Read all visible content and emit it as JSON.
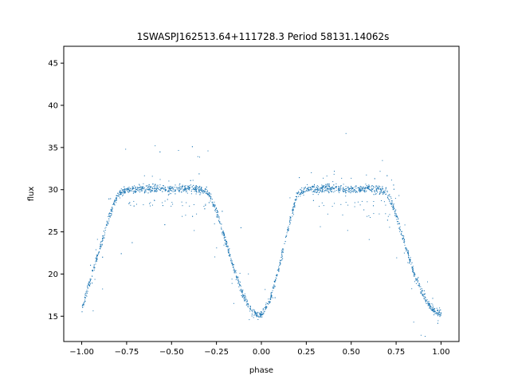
{
  "chart_data": {
    "type": "scatter",
    "title": "1SWASPJ162513.64+111728.3 Period 58131.14062s",
    "xlabel": "phase",
    "ylabel": "flux",
    "xlim": [
      -1.1,
      1.1
    ],
    "ylim": [
      12.0,
      47.0
    ],
    "xticks": [
      -1.0,
      -0.75,
      -0.5,
      -0.25,
      0.0,
      0.25,
      0.5,
      0.75,
      1.0
    ],
    "xtick_labels": [
      "−1.00",
      "−0.75",
      "−0.50",
      "−0.25",
      "0.00",
      "0.25",
      "0.50",
      "0.75",
      "1.00"
    ],
    "yticks": [
      15,
      20,
      25,
      30,
      35,
      40,
      45
    ],
    "ytick_labels": [
      "15",
      "20",
      "25",
      "30",
      "35",
      "40",
      "45"
    ],
    "grid": false,
    "marker_color": "#1f77b4",
    "series": [
      {
        "description_of_trend": "phase-folded light curve, repeated over two cycles",
        "x": [
          -1.0,
          -0.95,
          -0.9,
          -0.85,
          -0.8,
          -0.75,
          -0.6,
          -0.5,
          -0.4,
          -0.3,
          -0.25,
          -0.2,
          -0.15,
          -0.1,
          -0.05,
          0.0,
          0.05,
          0.1,
          0.15,
          0.2,
          0.25,
          0.4,
          0.5,
          0.6,
          0.7,
          0.75,
          0.8,
          0.85,
          0.9,
          0.95,
          1.0
        ],
        "y": [
          15.8,
          19.5,
          23.0,
          26.5,
          29.5,
          30.0,
          30.2,
          30.0,
          30.2,
          29.8,
          27.5,
          24.0,
          20.5,
          17.5,
          15.5,
          15.0,
          17.0,
          21.0,
          25.5,
          29.5,
          30.0,
          30.2,
          30.0,
          30.2,
          29.8,
          27.0,
          23.5,
          20.0,
          17.5,
          15.8,
          15.2
        ]
      }
    ]
  }
}
